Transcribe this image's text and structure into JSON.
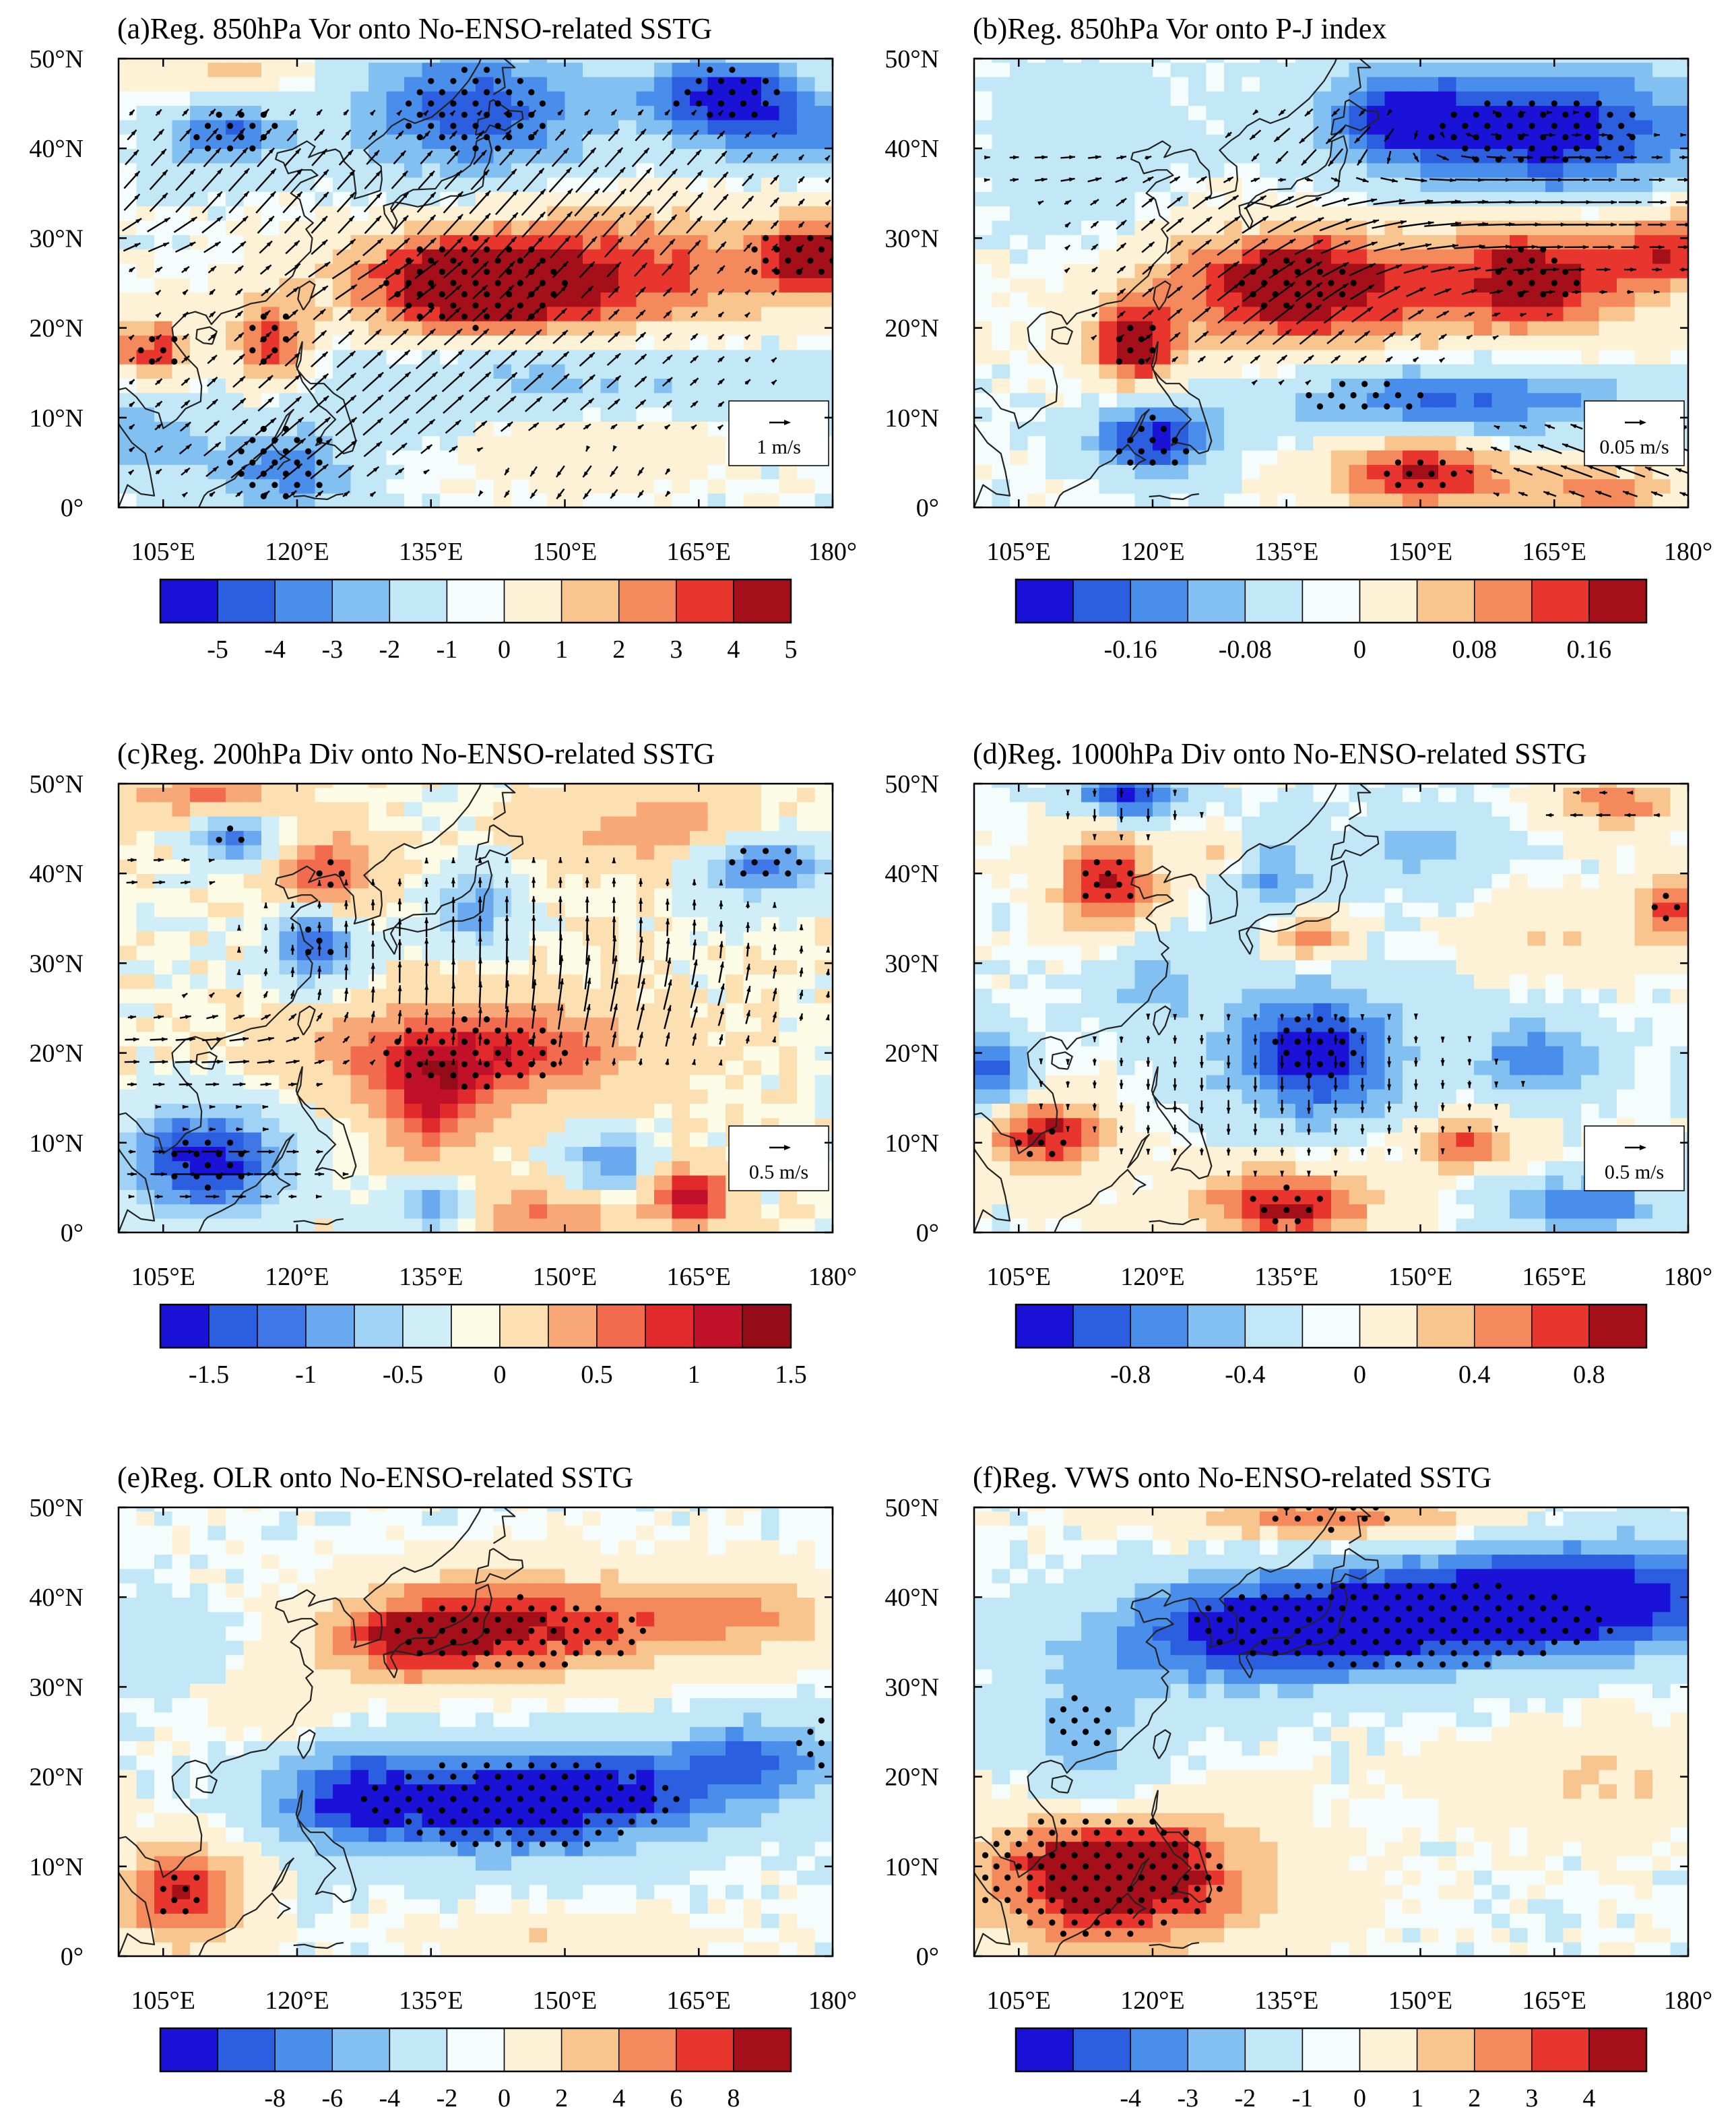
{
  "figure": {
    "longitude_ticks": [
      "105°E",
      "120°E",
      "135°E",
      "150°E",
      "165°E",
      "180°"
    ],
    "latitude_ticks": [
      "0°",
      "10°N",
      "20°N",
      "30°N",
      "40°N",
      "50°N"
    ],
    "lon_range": [
      100,
      180
    ],
    "lat_range": [
      0,
      50
    ]
  },
  "chart_data": [
    {
      "id": "a",
      "type": "heatmap",
      "title": "(a)Reg. 850hPa Vor onto No-ENSO-related SSTG",
      "variable": "850hPa vorticity with wind vectors",
      "reference_vector_label": "1 m/s",
      "colorbar": {
        "levels": [
          "-5",
          "-4",
          "-3",
          "-2",
          "-1",
          "0",
          "1",
          "2",
          "3",
          "4",
          "5"
        ],
        "colors": [
          "#1a12d6",
          "#2b5fe0",
          "#4a8eec",
          "#82c0f2",
          "#c2e8f8",
          "#f4fcfc",
          "#fdf1d6",
          "#f9c58f",
          "#f4895b",
          "#e8352d",
          "#a50f19"
        ]
      },
      "fields": {
        "positive": [
          [
            104,
            17.5,
            3,
            2.5,
            3.5
          ],
          [
            140,
            25,
            9,
            4,
            4.5
          ],
          [
            178,
            28,
            4,
            3,
            4
          ],
          [
            117,
            18,
            3,
            3.5,
            3.5
          ],
          [
            160,
            27,
            12,
            5,
            2
          ],
          [
            148,
            24,
            18,
            5,
            1.6
          ],
          [
            112,
            48,
            6,
            2.5,
            1.8
          ],
          [
            153,
            7,
            9,
            3,
            1.3
          ]
        ],
        "negative": [
          [
            140,
            44,
            10,
            5,
            3.5
          ],
          [
            168,
            46,
            6,
            3,
            4
          ],
          [
            112,
            42,
            5,
            3,
            3
          ],
          [
            118,
            4,
            6,
            4,
            2.5
          ],
          [
            150,
            15,
            18,
            4,
            1.8
          ],
          [
            176,
            42,
            8,
            3,
            2.2
          ],
          [
            103,
            8,
            4,
            3,
            2
          ]
        ]
      },
      "stipple": [
        [
          104,
          17.5,
          3,
          2.5
        ],
        [
          140,
          25,
          10,
          5
        ],
        [
          176,
          28,
          6,
          3
        ],
        [
          117,
          19,
          3,
          3
        ],
        [
          140,
          44,
          8,
          5
        ],
        [
          168,
          46,
          6,
          3
        ],
        [
          113,
          42,
          5,
          3
        ],
        [
          118,
          5,
          6,
          4
        ]
      ],
      "winds": [
        [
          112,
          36,
          15,
          48,
          4
        ],
        [
          150,
          32,
          15,
          48,
          4
        ],
        [
          158,
          38,
          12,
          48,
          2
        ],
        [
          136,
          14,
          20,
          42,
          4
        ],
        [
          118,
          6,
          8,
          38,
          3
        ],
        [
          150,
          4,
          10,
          -130,
          3
        ],
        [
          128,
          26,
          6,
          25,
          3
        ],
        [
          105,
          30,
          5,
          0,
          2
        ]
      ]
    },
    {
      "id": "b",
      "type": "heatmap",
      "title": "(b)Reg. 850hPa Vor onto P-J index",
      "variable": "850hPa vorticity with wind vectors",
      "reference_vector_label": "0.05 m/s",
      "colorbar": {
        "levels": [
          "-0.16",
          "-0.08",
          "0",
          "0.08",
          "0.16"
        ],
        "colors": [
          "#1a12d6",
          "#2b5fe0",
          "#4a8eec",
          "#82c0f2",
          "#c2e8f8",
          "#f4fcfc",
          "#fdf1d6",
          "#f9c58f",
          "#f4895b",
          "#e8352d",
          "#a50f19"
        ]
      },
      "fields": {
        "positive": [
          [
            136,
            25,
            9,
            4,
            0.2
          ],
          [
            118,
            18,
            3.5,
            3.5,
            0.19
          ],
          [
            163,
            26,
            7,
            4,
            0.17
          ],
          [
            178,
            29,
            4,
            3,
            0.15
          ],
          [
            150,
            4,
            7,
            3,
            0.18
          ],
          [
            170,
            2,
            6,
            2,
            0.12
          ],
          [
            150,
            23,
            22,
            6,
            0.06
          ]
        ],
        "negative": [
          [
            163,
            42,
            14,
            5,
            0.2
          ],
          [
            147,
            44,
            5,
            3,
            0.12
          ],
          [
            120,
            8,
            5,
            3,
            0.18
          ],
          [
            155,
            12,
            14,
            3,
            0.15
          ],
          [
            112,
            40,
            6,
            6,
            0.05
          ]
        ]
      },
      "stipple": [
        [
          136,
          25,
          7,
          3
        ],
        [
          118,
          18,
          3,
          3
        ],
        [
          163,
          26,
          5,
          3
        ],
        [
          163,
          42,
          12,
          4
        ],
        [
          120,
          7,
          4,
          3
        ],
        [
          150,
          4,
          5,
          2
        ],
        [
          144,
          12,
          7,
          2
        ]
      ],
      "winds": [
        [
          140,
          40,
          8,
          215,
          5
        ],
        [
          158,
          33,
          16,
          0,
          5
        ],
        [
          130,
          32,
          12,
          45,
          3
        ],
        [
          135,
          22,
          12,
          40,
          4
        ],
        [
          170,
          5,
          8,
          160,
          5
        ],
        [
          110,
          38,
          6,
          0,
          2
        ]
      ]
    },
    {
      "id": "c",
      "type": "heatmap",
      "title": "(c)Reg. 200hPa Div onto No-ENSO-related SSTG",
      "variable": "200hPa divergence with wind vectors",
      "reference_vector_label": "0.5 m/s",
      "colorbar": {
        "levels": [
          "-1.5",
          "-1",
          "-0.5",
          "0",
          "0.5",
          "1",
          "1.5"
        ],
        "colors": [
          "#1a12d6",
          "#2b5fe0",
          "#3f78e6",
          "#6aa8f0",
          "#9fd2f4",
          "#d0eef8",
          "#fbfbe6",
          "#fce0b2",
          "#f8a877",
          "#f36b4f",
          "#e22a2c",
          "#c1102a",
          "#940c18"
        ]
      },
      "fields": {
        "positive": [
          [
            140,
            20,
            12,
            4,
            1.1
          ],
          [
            135,
            14,
            4,
            4,
            0.9
          ],
          [
            164,
            4,
            3,
            2,
            1.4
          ],
          [
            123,
            40,
            4,
            3,
            0.9
          ],
          [
            110,
            49,
            6,
            2,
            0.7
          ],
          [
            160,
            45,
            8,
            3,
            0.6
          ],
          [
            148,
            2,
            6,
            2,
            0.7
          ]
        ],
        "negative": [
          [
            110,
            8,
            6,
            4,
            1.6
          ],
          [
            122,
            32,
            3,
            3,
            1.2
          ],
          [
            113,
            44,
            3,
            2,
            1.1
          ],
          [
            140,
            36,
            3,
            3,
            0.8
          ],
          [
            172,
            41,
            5,
            2.5,
            1.1
          ],
          [
            155,
            8,
            3,
            2.5,
            0.9
          ],
          [
            135,
            3,
            3,
            2,
            0.8
          ]
        ]
      },
      "stipple": [
        [
          140,
          20,
          10,
          4
        ],
        [
          110,
          8,
          5,
          3
        ],
        [
          122,
          32,
          2,
          2
        ],
        [
          113,
          44,
          2,
          1.5
        ],
        [
          172,
          41,
          5,
          2
        ],
        [
          123,
          40,
          2,
          2
        ]
      ],
      "winds": [
        [
          146,
          30,
          18,
          90,
          4
        ],
        [
          110,
          20,
          10,
          0,
          3
        ],
        [
          112,
          7,
          7,
          0,
          4
        ],
        [
          104,
          40,
          5,
          0,
          2
        ],
        [
          160,
          26,
          10,
          60,
          2
        ]
      ]
    },
    {
      "id": "d",
      "type": "heatmap",
      "title": "(d)Reg. 1000hPa Div onto No-ENSO-related SSTG",
      "variable": "1000hPa divergence with wind vectors",
      "reference_vector_label": "0.5 m/s",
      "colorbar": {
        "levels": [
          "-0.8",
          "-0.4",
          "0",
          "0.4",
          "0.8"
        ],
        "colors": [
          "#1a12d6",
          "#2b5fe0",
          "#4a8eec",
          "#82c0f2",
          "#c2e8f8",
          "#f4fcfc",
          "#fdf1d6",
          "#f9c58f",
          "#f4895b",
          "#e8352d",
          "#a50f19"
        ]
      },
      "fields": {
        "positive": [
          [
            108,
            11,
            5,
            3,
            0.9
          ],
          [
            135,
            3,
            7,
            3,
            0.9
          ],
          [
            115,
            39,
            4,
            4,
            0.9
          ],
          [
            138,
            33,
            3,
            2,
            0.6
          ],
          [
            178,
            36,
            3,
            3,
            0.7
          ],
          [
            172,
            48,
            5,
            2,
            0.6
          ],
          [
            155,
            10,
            4,
            2,
            0.7
          ],
          [
            128,
            42,
            3,
            2,
            0.4
          ],
          [
            165,
            33,
            5,
            3,
            0.3
          ]
        ],
        "negative": [
          [
            138,
            20,
            7,
            5,
            1
          ],
          [
            117,
            49,
            4,
            2,
            0.9
          ],
          [
            102,
            18,
            3,
            3,
            0.8
          ],
          [
            163,
            20,
            5,
            3,
            0.6
          ],
          [
            120,
            28,
            4,
            4,
            0.4
          ],
          [
            133,
            40,
            4,
            3,
            0.5
          ],
          [
            168,
            3,
            6,
            2,
            0.7
          ],
          [
            150,
            43,
            5,
            3,
            0.4
          ]
        ]
      },
      "stipple": [
        [
          138,
          21,
          5,
          4
        ],
        [
          108,
          10,
          4,
          2
        ],
        [
          115,
          39,
          3,
          3
        ],
        [
          135,
          3,
          5,
          2
        ],
        [
          178,
          36,
          2,
          2
        ]
      ],
      "winds": [
        [
          134,
          16,
          18,
          270,
          2
        ],
        [
          117,
          47,
          6,
          270,
          2
        ],
        [
          170,
          47,
          5,
          180,
          2
        ]
      ]
    },
    {
      "id": "e",
      "type": "heatmap",
      "title": "(e)Reg. OLR onto No-ENSO-related SSTG",
      "variable": "Outgoing longwave radiation",
      "colorbar": {
        "levels": [
          "-8",
          "-6",
          "-4",
          "-2",
          "0",
          "2",
          "4",
          "6",
          "8"
        ],
        "colors": [
          "#1a12d6",
          "#2b5fe0",
          "#4a8eec",
          "#82c0f2",
          "#c2e8f8",
          "#f4fcfc",
          "#fdf1d6",
          "#f9c58f",
          "#f4895b",
          "#e8352d",
          "#a50f19"
        ]
      },
      "fields": {
        "positive": [
          [
            145,
            37,
            12,
            4,
            7
          ],
          [
            132,
            35,
            6,
            3,
            5
          ],
          [
            107,
            7,
            5,
            4,
            7
          ],
          [
            170,
            38,
            8,
            3,
            4
          ],
          [
            150,
            2,
            10,
            2,
            2
          ],
          [
            118,
            28,
            6,
            3,
            1.5
          ]
        ],
        "negative": [
          [
            145,
            17,
            14,
            4,
            8
          ],
          [
            126,
            18,
            6,
            4,
            5
          ],
          [
            172,
            23,
            6,
            3,
            4
          ],
          [
            160,
            20,
            12,
            3,
            3
          ],
          [
            105,
            35,
            6,
            4,
            1.5
          ]
        ]
      },
      "stipple": [
        [
          145,
          36,
          14,
          4
        ],
        [
          145,
          17,
          18,
          5
        ],
        [
          107,
          7,
          3,
          3
        ],
        [
          178,
          24,
          2,
          3
        ]
      ],
      "winds": []
    },
    {
      "id": "f",
      "type": "heatmap",
      "title": "(f)Reg. VWS onto No-ENSO-related SSTG",
      "variable": "Vertical wind shear",
      "colorbar": {
        "levels": [
          "-4",
          "-3",
          "-2",
          "-1",
          "0",
          "1",
          "2",
          "3",
          "4"
        ],
        "colors": [
          "#1a12d6",
          "#2b5fe0",
          "#4a8eec",
          "#82c0f2",
          "#c2e8f8",
          "#f4fcfc",
          "#fdf1d6",
          "#f9c58f",
          "#f4895b",
          "#e8352d",
          "#a50f19"
        ]
      },
      "fields": {
        "positive": [
          [
            116,
            8,
            12,
            6,
            3.2
          ],
          [
            140,
            49,
            12,
            2,
            2.5
          ],
          [
            116,
            10,
            6,
            3,
            3.5
          ],
          [
            170,
            20,
            10,
            4,
            1.2
          ]
        ],
        "negative": [
          [
            150,
            38,
            18,
            4,
            4
          ],
          [
            130,
            35,
            12,
            4,
            2.5
          ],
          [
            170,
            41,
            12,
            4,
            3
          ],
          [
            112,
            25,
            6,
            5,
            1.5
          ],
          [
            115,
            18,
            4,
            3,
            1
          ]
        ]
      },
      "stipple": [
        [
          148,
          37,
          24,
          5
        ],
        [
          114,
          9,
          14,
          7
        ],
        [
          112,
          26,
          4,
          3
        ],
        [
          140,
          49,
          8,
          1.5
        ]
      ],
      "winds": []
    }
  ]
}
